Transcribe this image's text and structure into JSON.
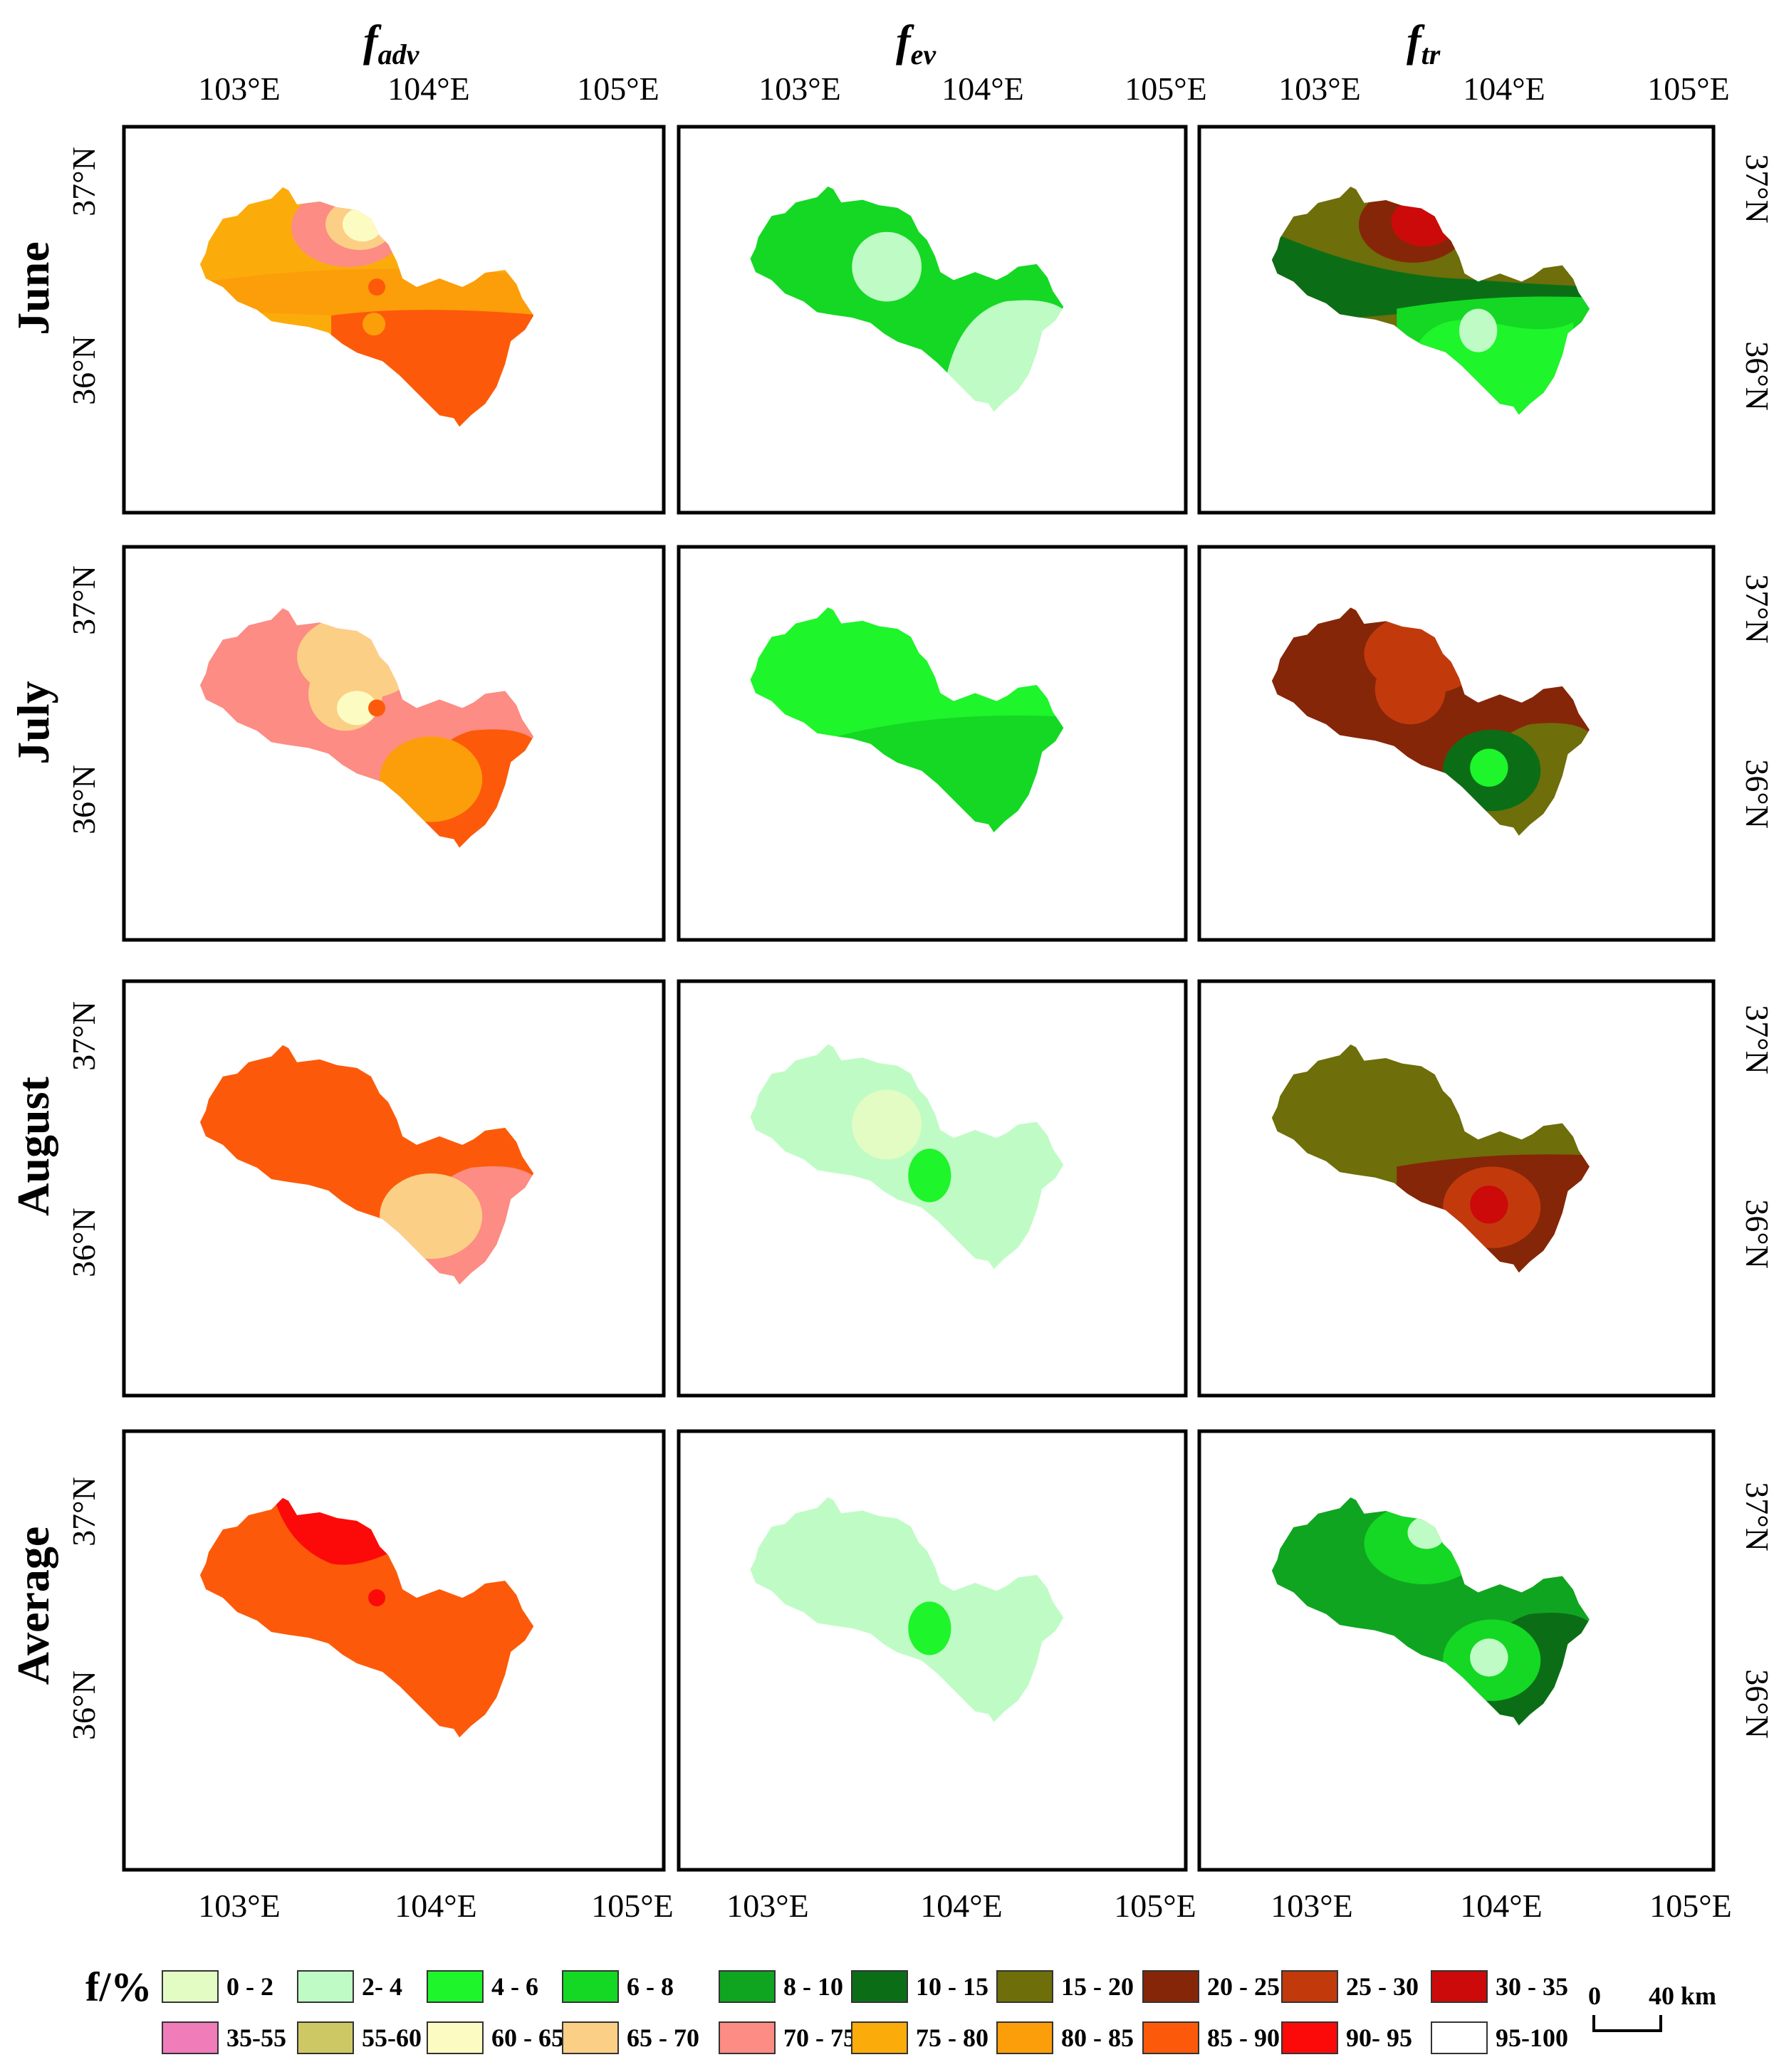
{
  "columns": [
    {
      "title": "f",
      "subscript": "adv"
    },
    {
      "title": "f",
      "subscript": "ev"
    },
    {
      "title": "f",
      "subscript": "tr"
    }
  ],
  "rows": [
    "June",
    "July",
    "August",
    "Average"
  ],
  "lon_labels": {
    "col0": [
      "103°E",
      "104°E",
      "105°E"
    ],
    "col1": [
      "103°E",
      "104°E",
      "105°E"
    ],
    "col2": [
      "103°E",
      "104°E",
      "105°E"
    ]
  },
  "lat_labels": [
    "37°N",
    "36°N"
  ],
  "legend": {
    "title": "f/%",
    "items": [
      {
        "label": "0 - 2",
        "color": "#E3FCC3"
      },
      {
        "label": "2- 4",
        "color": "#BFFCC5"
      },
      {
        "label": "4 - 6",
        "color": "#1EF52A"
      },
      {
        "label": "6 - 8",
        "color": "#14D824"
      },
      {
        "label": "8 - 10",
        "color": "#10A521"
      },
      {
        "label": "10 - 15",
        "color": "#0B6E17"
      },
      {
        "label": "15 - 20",
        "color": "#6E6E0A"
      },
      {
        "label": "20 - 25",
        "color": "#862608"
      },
      {
        "label": "25 - 30",
        "color": "#C23A0C"
      },
      {
        "label": "30 - 35",
        "color": "#CC0A0A"
      },
      {
        "label": "35-55",
        "color": "#F07CB9"
      },
      {
        "label": "55-60",
        "color": "#CDC864"
      },
      {
        "label": "60 - 65",
        "color": "#FCFCC2"
      },
      {
        "label": "65 - 70",
        "color": "#FCCF86"
      },
      {
        "label": "70 - 75",
        "color": "#FC8C84"
      },
      {
        "label": "75 - 80",
        "color": "#FCAC0A"
      },
      {
        "label": "80 - 85",
        "color": "#FC9E0A"
      },
      {
        "label": "85 - 90",
        "color": "#FC5A0A"
      },
      {
        "label": "90- 95",
        "color": "#FC0A0A"
      },
      {
        "label": "95-100",
        "color": "#FFFFFF"
      }
    ]
  },
  "scale_bar": {
    "start": "0",
    "end": "40 km"
  },
  "maps": [
    {
      "row": "June",
      "col": "adv",
      "base": "75 - 80",
      "zones": [
        {
          "class": "85 - 90",
          "shape": "south"
        },
        {
          "class": "80 - 85",
          "shape": "middle"
        },
        {
          "class": "70 - 75",
          "shape": "ne-blob"
        },
        {
          "class": "65 - 70",
          "shape": "ne-core"
        },
        {
          "class": "60 - 65",
          "shape": "ne-center"
        },
        {
          "class": "85 - 90",
          "shape": "dot-mid"
        },
        {
          "class": "80 - 85",
          "shape": "dot-south"
        }
      ]
    },
    {
      "row": "June",
      "col": "ev",
      "base": "6 - 8",
      "zones": [
        {
          "class": "2- 4",
          "shape": "se-big"
        },
        {
          "class": "2- 4",
          "shape": "mid-blob"
        }
      ]
    },
    {
      "row": "June",
      "col": "tr",
      "base": "15 - 20",
      "zones": [
        {
          "class": "10 - 15",
          "shape": "band-west"
        },
        {
          "class": "6 - 8",
          "shape": "south"
        },
        {
          "class": "4 - 6",
          "shape": "south-core"
        },
        {
          "class": "2- 4",
          "shape": "south-center"
        },
        {
          "class": "20 - 25",
          "shape": "ne-blob"
        },
        {
          "class": "30 - 35",
          "shape": "ne-core"
        }
      ]
    },
    {
      "row": "July",
      "col": "adv",
      "base": "70 - 75",
      "zones": [
        {
          "class": "65 - 70",
          "shape": "north-blob"
        },
        {
          "class": "85 - 90",
          "shape": "se-big"
        },
        {
          "class": "80 - 85",
          "shape": "se-core"
        },
        {
          "class": "65 - 70",
          "shape": "mid-blob"
        },
        {
          "class": "60 - 65",
          "shape": "mid-center"
        },
        {
          "class": "85 - 90",
          "shape": "dot-mid"
        }
      ]
    },
    {
      "row": "July",
      "col": "ev",
      "base": "4 - 6",
      "zones": [
        {
          "class": "6 - 8",
          "shape": "south-band"
        }
      ]
    },
    {
      "row": "July",
      "col": "tr",
      "base": "20 - 25",
      "zones": [
        {
          "class": "25 - 30",
          "shape": "north-blob"
        },
        {
          "class": "15 - 20",
          "shape": "se-big"
        },
        {
          "class": "10 - 15",
          "shape": "se-core"
        },
        {
          "class": "4 - 6",
          "shape": "se-center"
        },
        {
          "class": "25 - 30",
          "shape": "mid-blob"
        }
      ]
    },
    {
      "row": "August",
      "col": "adv",
      "base": "85 - 90",
      "zones": [
        {
          "class": "70 - 75",
          "shape": "se-big"
        },
        {
          "class": "65 - 70",
          "shape": "se-core"
        }
      ]
    },
    {
      "row": "August",
      "col": "ev",
      "base": "2- 4",
      "zones": [
        {
          "class": "0 - 2",
          "shape": "mid-blob"
        },
        {
          "class": "0 - 2",
          "shape": "small-ne"
        },
        {
          "class": "4 - 6",
          "shape": "dot-green"
        }
      ]
    },
    {
      "row": "August",
      "col": "tr",
      "base": "15 - 20",
      "zones": [
        {
          "class": "20 - 25",
          "shape": "south"
        },
        {
          "class": "20 - 25",
          "shape": "se-big"
        },
        {
          "class": "25 - 30",
          "shape": "se-core"
        },
        {
          "class": "30 - 35",
          "shape": "se-center"
        }
      ]
    },
    {
      "row": "Average",
      "col": "adv",
      "base": "85 - 90",
      "zones": [
        {
          "class": "90- 95",
          "shape": "ne-north"
        },
        {
          "class": "90- 95",
          "shape": "dot-mid"
        }
      ]
    },
    {
      "row": "Average",
      "col": "ev",
      "base": "2- 4",
      "zones": [
        {
          "class": "4 - 6",
          "shape": "dot-green"
        }
      ]
    },
    {
      "row": "Average",
      "col": "tr",
      "base": "8 - 10",
      "zones": [
        {
          "class": "6 - 8",
          "shape": "north-blob"
        },
        {
          "class": "2- 4",
          "shape": "ne-center"
        },
        {
          "class": "10 - 15",
          "shape": "se-big"
        },
        {
          "class": "6 - 8",
          "shape": "se-core"
        },
        {
          "class": "2- 4",
          "shape": "se-center"
        }
      ]
    }
  ]
}
